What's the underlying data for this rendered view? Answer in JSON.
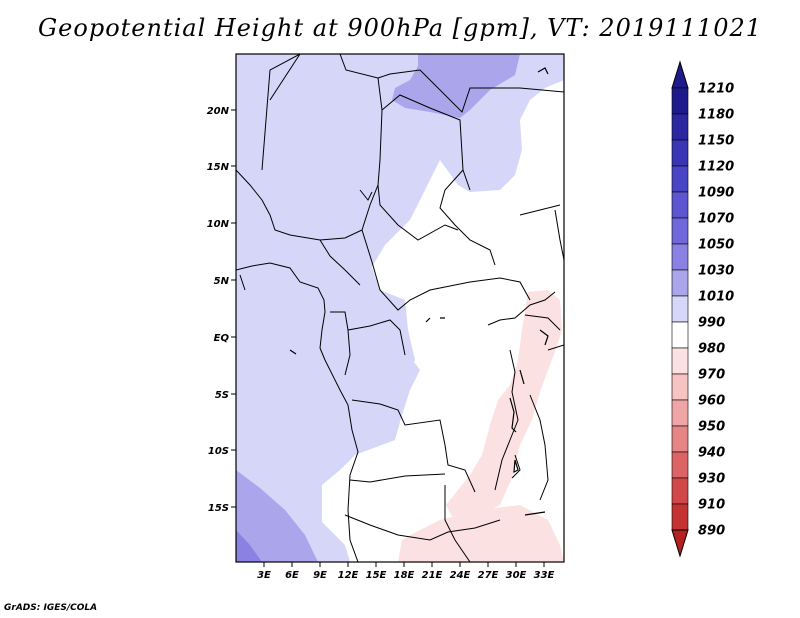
{
  "title": "Geopotential Height at 900hPa [gpm], VT: 2019111021",
  "credit": "GrADS: IGES/COLA",
  "map": {
    "variable": "Geopotential Height",
    "level": "900hPa",
    "units": "gpm",
    "valid_time": "2019111021",
    "lat_labels": [
      "20N",
      "15N",
      "10N",
      "5N",
      "EQ",
      "5S",
      "10S",
      "15S"
    ],
    "lon_labels": [
      "3E",
      "6E",
      "9E",
      "12E",
      "15E",
      "18E",
      "21E",
      "24E",
      "27E",
      "30E",
      "33E"
    ]
  },
  "colorbar": {
    "levels": [
      "1210",
      "1180",
      "1150",
      "1120",
      "1090",
      "1070",
      "1050",
      "1030",
      "1010",
      "990",
      "980",
      "970",
      "960",
      "950",
      "940",
      "930",
      "910",
      "890"
    ],
    "colors": [
      "#1e1a8c",
      "#2b27a0",
      "#3a35b4",
      "#4a45c4",
      "#5c56d0",
      "#7068da",
      "#8a82e2",
      "#aba6ec",
      "#d6d6f8",
      "#ffffff",
      "#fbe1e1",
      "#f6c3c3",
      "#efa5a5",
      "#e58585",
      "#dc6464",
      "#d04848",
      "#c43232",
      "#b52020"
    ],
    "bar_colors": [
      "#1e1a8c",
      "#2b27a0",
      "#3a35b4",
      "#4a45c4",
      "#5c56d0",
      "#7068da",
      "#8a82e2",
      "#aba6ec",
      "#d6d6f8",
      "#ffffff",
      "#fbe1e1",
      "#f6c3c3",
      "#efa5a5",
      "#e58585",
      "#dc6464",
      "#d04848",
      "#c43232"
    ]
  }
}
